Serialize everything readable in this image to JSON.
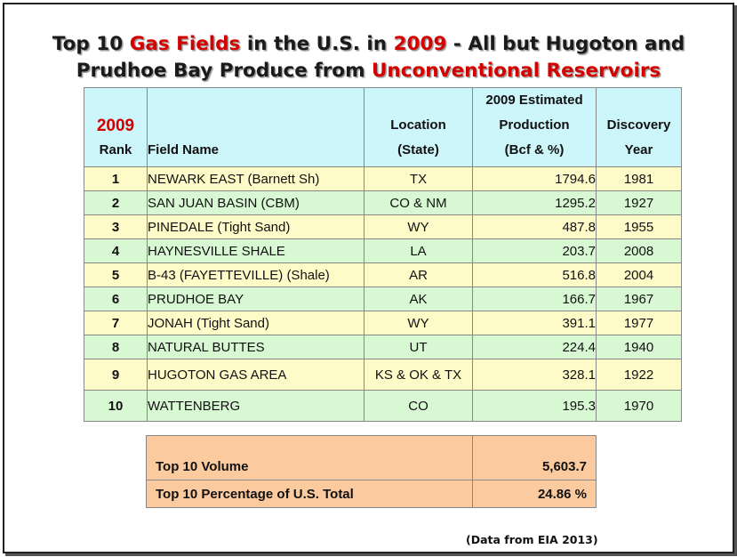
{
  "title": {
    "line1": [
      {
        "text": "Top 10 ",
        "color": "#1a1a1a"
      },
      {
        "text": "Gas Fields",
        "color": "#d40000"
      },
      {
        "text": " in the U.S. in ",
        "color": "#1a1a1a"
      },
      {
        "text": "2009",
        "color": "#d40000"
      },
      {
        "text": " - All but Hugoton and",
        "color": "#1a1a1a"
      }
    ],
    "line2": [
      {
        "text": "Prudhoe Bay Produce from ",
        "color": "#1a1a1a"
      },
      {
        "text": "Unconventional Reservoirs",
        "color": "#d40000"
      }
    ]
  },
  "table": {
    "headers": {
      "rank_year": "2009",
      "rank": "Rank",
      "field": "Field Name",
      "location_1": "Location",
      "location_2": "(State)",
      "production_1": "2009 Estimated",
      "production_2": "Production",
      "production_3": "(Bcf & %)",
      "discovery_1": "Discovery",
      "discovery_2": "Year"
    },
    "rows": [
      {
        "rank": "1",
        "field": "NEWARK EAST (Barnett Sh)",
        "location": "TX",
        "production": "1794.6",
        "year": "1981"
      },
      {
        "rank": "2",
        "field": "SAN JUAN BASIN (CBM)",
        "location": "CO & NM",
        "production": "1295.2",
        "year": "1927"
      },
      {
        "rank": "3",
        "field": "PINEDALE (Tight Sand)",
        "location": "WY",
        "production": "487.8",
        "year": "1955"
      },
      {
        "rank": "4",
        "field": "HAYNESVILLE SHALE",
        "location": "LA",
        "production": "203.7",
        "year": "2008"
      },
      {
        "rank": "5",
        "field": "B-43 (FAYETTEVILLE) (Shale)",
        "location": "AR",
        "production": "516.8",
        "year": "2004"
      },
      {
        "rank": "6",
        "field": "PRUDHOE BAY",
        "location": "AK",
        "production": "166.7",
        "year": "1967"
      },
      {
        "rank": "7",
        "field": "JONAH (Tight Sand)",
        "location": "WY",
        "production": "391.1",
        "year": "1977"
      },
      {
        "rank": "8",
        "field": "NATURAL BUTTES",
        "location": "UT",
        "production": "224.4",
        "year": "1940"
      },
      {
        "rank": "9",
        "field": "HUGOTON GAS AREA",
        "location": "KS & OK & TX",
        "production": "328.1",
        "year": "1922"
      },
      {
        "rank": "10",
        "field": "WATTENBERG",
        "location": "CO",
        "production": "195.3",
        "year": "1970"
      }
    ]
  },
  "totals": {
    "volume_label": "Top 10 Volume",
    "volume_value": "5,603.7",
    "percent_label": "Top 10 Percentage of U.S. Total",
    "percent_value": "24.86 %"
  },
  "source": "(Data from EIA 2013)",
  "colors": {
    "header_bg": "#cdf6fb",
    "row_yellow": "#fffbc8",
    "row_green": "#d7f8d2",
    "totals_bg": "#fbcb9f",
    "accent_red": "#d40000"
  }
}
